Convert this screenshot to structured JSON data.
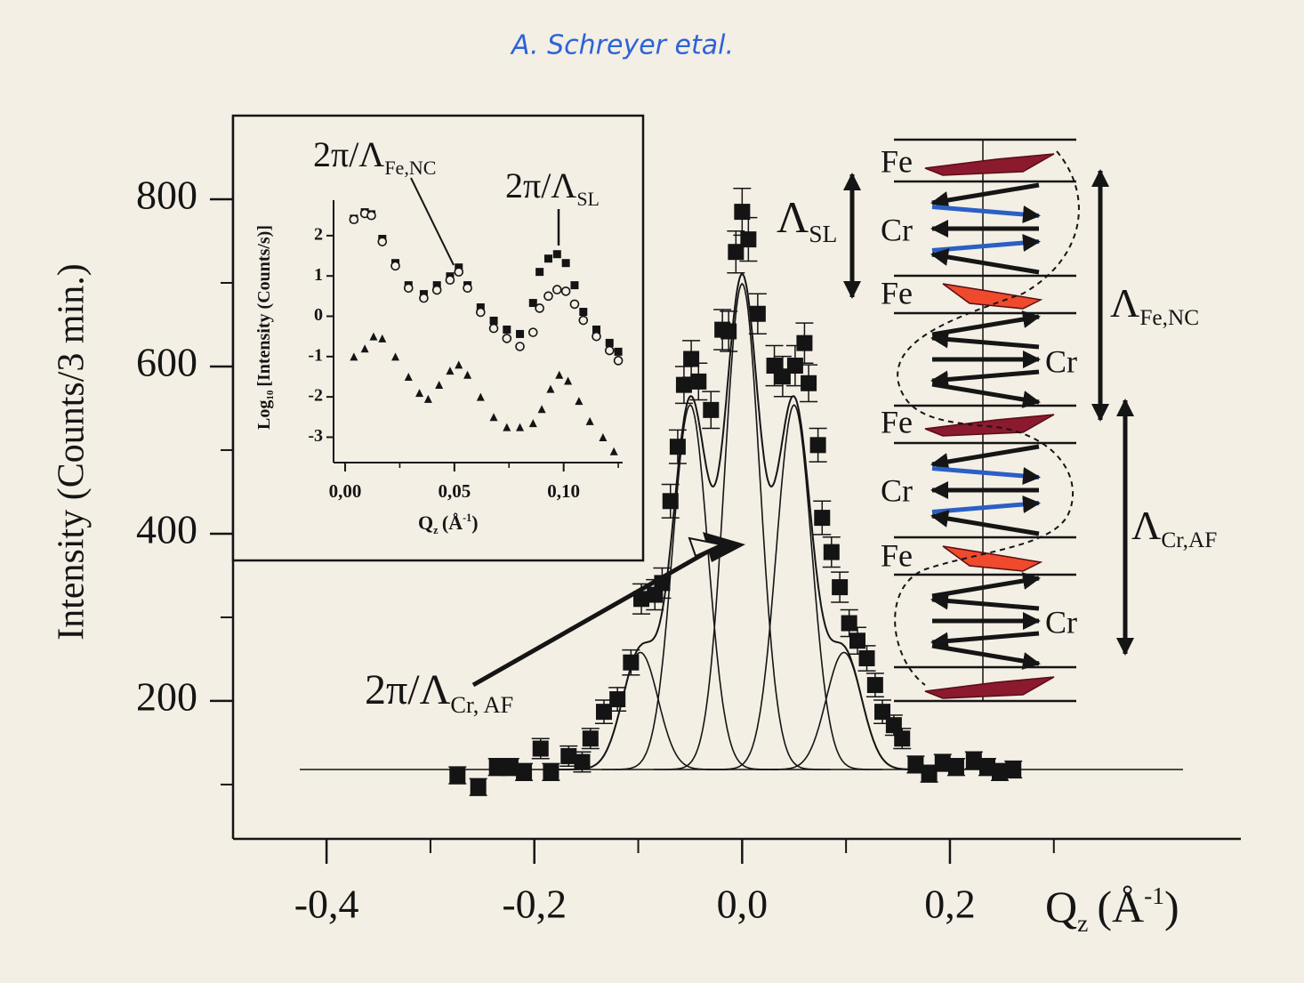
{
  "handwriting": "A. Schreyer etal.",
  "schematic": {
    "labels": [
      "Fe",
      "Cr",
      "Fe",
      "Cr",
      "Fe",
      "Cr",
      "Fe",
      "Cr"
    ]
  },
  "chart_data": [
    {
      "type": "scatter",
      "xlabel": {
        "main": "Q",
        "sub": "z",
        "unit": "(Å",
        "sup": "-1",
        "end": ")"
      },
      "ylabel": "Intensity (Counts/3 min.)",
      "x": [
        -0.274,
        -0.254,
        -0.236,
        -0.223,
        -0.21,
        -0.194,
        -0.184,
        -0.167,
        -0.154,
        -0.146,
        -0.133,
        -0.12,
        -0.107,
        -0.097,
        -0.084,
        -0.077,
        -0.069,
        -0.062,
        -0.056,
        -0.049,
        -0.042,
        -0.03,
        -0.019,
        -0.013,
        -0.006,
        0.0,
        0.006,
        0.015,
        0.031,
        0.039,
        0.051,
        0.06,
        0.064,
        0.073,
        0.077,
        0.086,
        0.094,
        0.103,
        0.111,
        0.12,
        0.128,
        0.135,
        0.146,
        0.154,
        0.167,
        0.18,
        0.193,
        0.206,
        0.223,
        0.236,
        0.248,
        0.261
      ],
      "values": [
        111,
        97,
        121,
        121,
        115,
        143,
        115,
        134,
        127,
        155,
        187,
        202,
        246,
        322,
        327,
        341,
        439,
        504,
        578,
        609,
        582,
        548,
        644,
        642,
        737,
        785,
        752,
        663,
        601,
        588,
        601,
        628,
        580,
        506,
        419,
        378,
        336,
        293,
        272,
        251,
        219,
        187,
        171,
        155,
        124,
        113,
        126,
        121,
        129,
        121,
        115,
        118
      ],
      "errors": [
        10,
        10,
        10,
        10,
        10,
        12,
        10,
        12,
        12,
        12,
        14,
        14,
        15,
        18,
        18,
        18,
        20,
        20,
        22,
        22,
        22,
        22,
        24,
        24,
        25,
        28,
        26,
        24,
        24,
        24,
        24,
        24,
        22,
        20,
        20,
        18,
        18,
        16,
        16,
        15,
        14,
        14,
        12,
        12,
        10,
        10,
        10,
        10,
        10,
        10,
        10,
        10
      ],
      "color": "#141414",
      "marker": "square",
      "xlim": [
        -0.49,
        0.48
      ],
      "xticks": [
        {
          "value": -0.4,
          "label": "-0,4"
        },
        {
          "value": -0.2,
          "label": "-0,2"
        },
        {
          "value": 0.0,
          "label": "0,0"
        },
        {
          "value": 0.2,
          "label": "0,2"
        }
      ],
      "xminorticks": [
        -0.3,
        -0.1,
        0.1,
        0.3
      ],
      "ylim": [
        35,
        900
      ],
      "yticks": [
        200,
        400,
        600,
        800
      ],
      "yminorticks": [
        100,
        300,
        500,
        700
      ],
      "fit": {
        "baseline": 118,
        "peaks": [
          {
            "center": -0.098,
            "height": 140,
            "sigma": 0.017
          },
          {
            "center": -0.05,
            "height": 436,
            "sigma": 0.017
          },
          {
            "center": 0.0,
            "height": 581,
            "sigma": 0.017
          },
          {
            "center": 0.05,
            "height": 436,
            "sigma": 0.017
          },
          {
            "center": 0.098,
            "height": 140,
            "sigma": 0.017
          }
        ]
      },
      "annotations": [
        {
          "main": "Λ",
          "sub": "SL"
        },
        {
          "main": "2π/Λ",
          "sub": "Cr, AF"
        },
        {
          "main": "Λ",
          "sub": "Fe,NC"
        },
        {
          "main": "Λ",
          "sub": "Cr,AF"
        }
      ]
    },
    {
      "type": "scatter",
      "xlabel": {
        "main": "Q",
        "sub": "z",
        "unit": "(Å",
        "sup": "-1",
        "end": ")"
      },
      "ylabel": {
        "main": "Log",
        "sub": "10",
        "rest": "[Intensity (Counts/s)]"
      },
      "xlim": [
        -0.0053,
        0.127
      ],
      "xticks": [
        {
          "value": 0.0,
          "label": "0,00"
        },
        {
          "value": 0.05,
          "label": "0,05"
        },
        {
          "value": 0.1,
          "label": "0,10"
        }
      ],
      "xminorticks": [
        0.025,
        0.075,
        0.125
      ],
      "ylim": [
        -3.63,
        2.88
      ],
      "yticks": [
        -3,
        -2,
        -1,
        0,
        1,
        2
      ],
      "series": [
        {
          "color": "#141414",
          "marker": "square",
          "x": [
            0.004,
            0.009,
            0.012,
            0.017,
            0.023,
            0.029,
            0.036,
            0.042,
            0.048,
            0.052,
            0.056,
            0.062,
            0.068,
            0.074,
            0.08,
            0.086,
            0.089,
            0.093,
            0.097,
            0.101,
            0.105,
            0.109,
            0.115,
            0.121,
            0.125
          ],
          "values": [
            2.42,
            2.58,
            2.53,
            1.92,
            1.32,
            0.77,
            0.55,
            0.77,
            0.99,
            1.21,
            0.77,
            0.22,
            -0.11,
            -0.33,
            -0.44,
            0.33,
            1.1,
            1.43,
            1.54,
            1.32,
            0.77,
            0.11,
            -0.33,
            -0.66,
            -0.88
          ]
        },
        {
          "color": "#141414",
          "marker": "circle-open",
          "x": [
            0.004,
            0.009,
            0.012,
            0.017,
            0.023,
            0.029,
            0.036,
            0.042,
            0.048,
            0.052,
            0.056,
            0.062,
            0.068,
            0.074,
            0.08,
            0.086,
            0.089,
            0.093,
            0.097,
            0.101,
            0.105,
            0.109,
            0.115,
            0.121,
            0.125
          ],
          "values": [
            2.4,
            2.55,
            2.5,
            1.85,
            1.25,
            0.7,
            0.45,
            0.65,
            0.9,
            1.1,
            0.7,
            0.1,
            -0.3,
            -0.55,
            -0.75,
            -0.4,
            0.2,
            0.5,
            0.66,
            0.62,
            0.3,
            -0.1,
            -0.5,
            -0.85,
            -1.1
          ]
        },
        {
          "color": "#141414",
          "marker": "triangle",
          "x": [
            0.004,
            0.009,
            0.013,
            0.017,
            0.023,
            0.029,
            0.034,
            0.038,
            0.043,
            0.048,
            0.052,
            0.056,
            0.062,
            0.068,
            0.074,
            0.08,
            0.086,
            0.09,
            0.094,
            0.098,
            0.102,
            0.107,
            0.112,
            0.118,
            0.123
          ],
          "values": [
            -1.0,
            -0.8,
            -0.5,
            -0.55,
            -1.0,
            -1.5,
            -1.9,
            -2.05,
            -1.7,
            -1.35,
            -1.2,
            -1.45,
            -2.0,
            -2.5,
            -2.75,
            -2.75,
            -2.65,
            -2.3,
            -1.8,
            -1.45,
            -1.6,
            -2.1,
            -2.6,
            -3.0,
            -3.35
          ]
        }
      ],
      "annotations": [
        {
          "main": "2π/Λ",
          "sub": "Fe,NC"
        },
        {
          "main": "2π/Λ",
          "sub": "SL"
        }
      ]
    }
  ]
}
